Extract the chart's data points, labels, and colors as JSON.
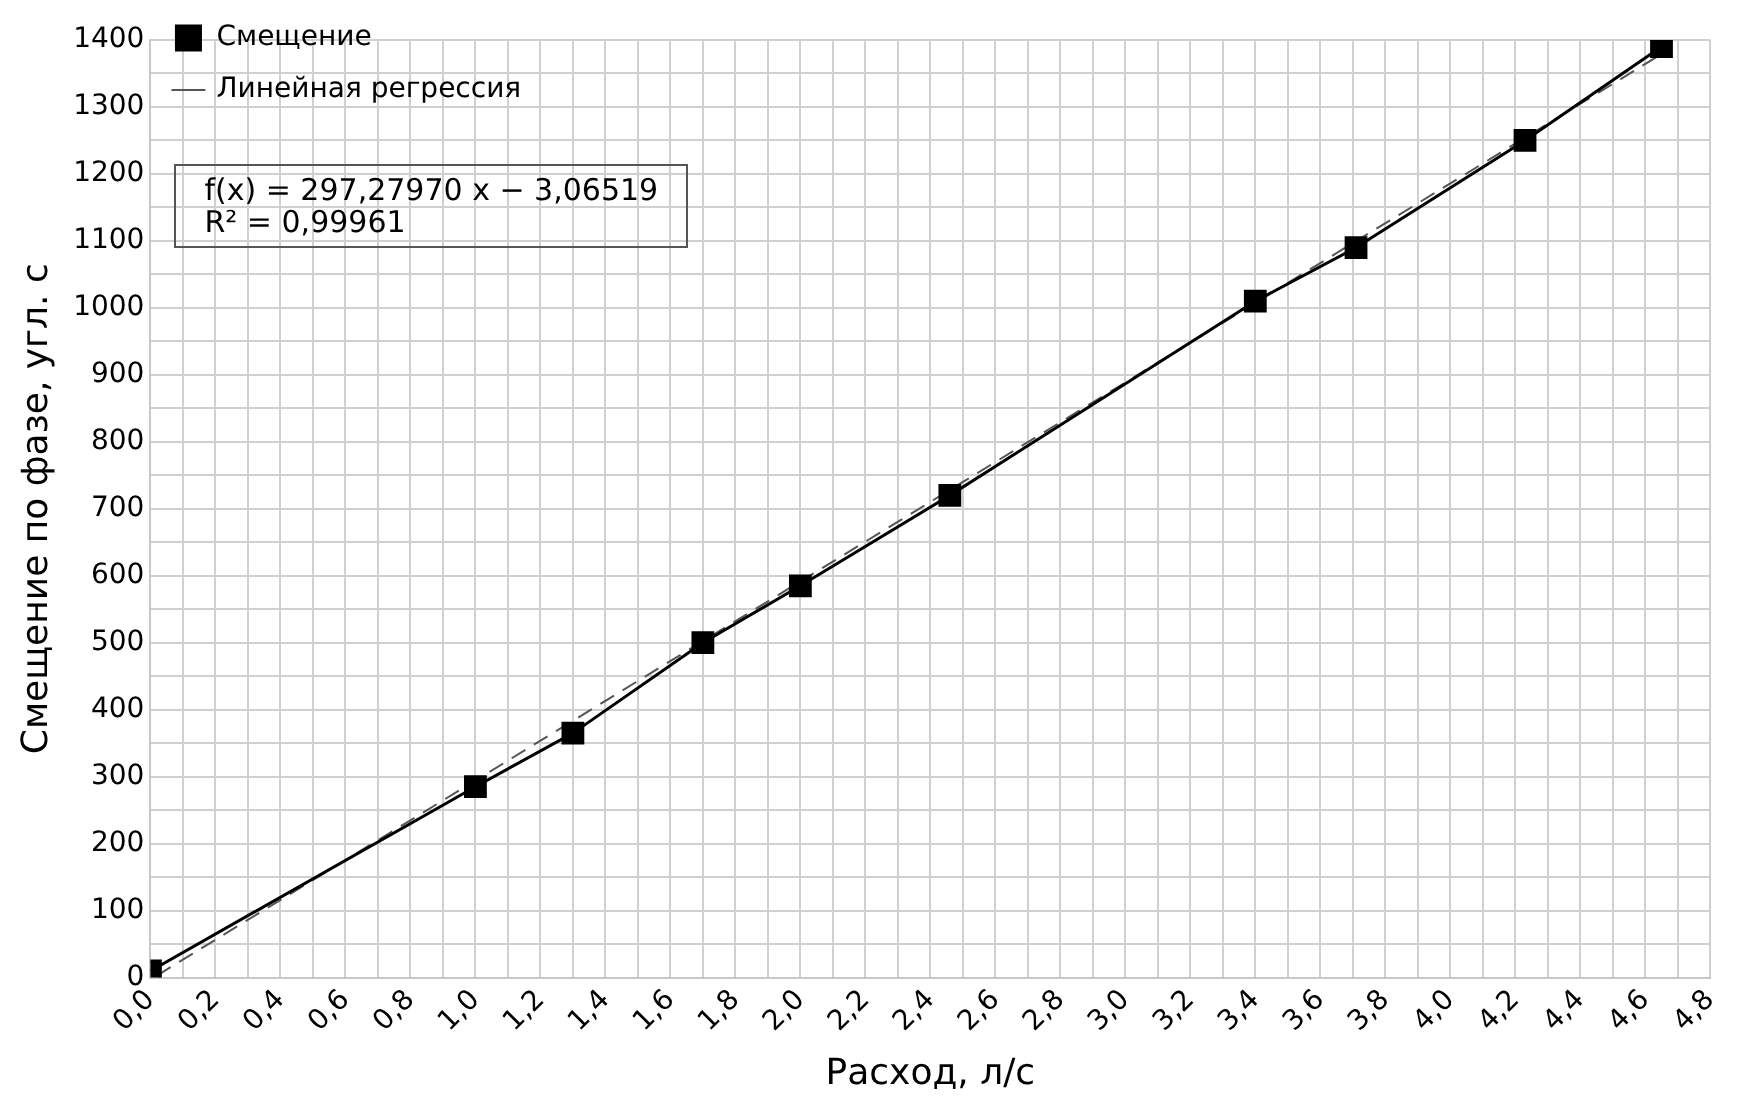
{
  "chart_data": {
    "type": "line",
    "xlabel": "Расход, л/с",
    "ylabel": "Смещение по фазе, угл. с",
    "x": [
      0,
      1.0,
      1.3,
      1.7,
      2.0,
      2.46,
      3.4,
      3.71,
      4.23,
      4.65
    ],
    "series": [
      {
        "name": "Смещение",
        "color": "#000000",
        "marker": "square",
        "line_style": "solid",
        "values": [
          10,
          285,
          365,
          500,
          585,
          720,
          1010,
          1090,
          1250,
          1390
        ]
      },
      {
        "name": "Линейная регрессия",
        "type": "line",
        "color": "#555555",
        "marker": "none",
        "line_style": "dashed",
        "x": [
          0.02,
          4.65
        ],
        "values": [
          3,
          1379
        ]
      }
    ],
    "xlim": [
      0,
      4.8
    ],
    "ylim": [
      0,
      1400
    ],
    "xticks": [
      {
        "value": 0,
        "label": "0,0"
      },
      {
        "value": 0.1,
        "label": null
      },
      {
        "value": 0.2,
        "label": "0,2"
      },
      {
        "value": 0.3,
        "label": null
      },
      {
        "value": 0.4,
        "label": "0,4"
      },
      {
        "value": 0.5,
        "label": null
      },
      {
        "value": 0.6,
        "label": "0,6"
      },
      {
        "value": 0.7,
        "label": null
      },
      {
        "value": 0.8,
        "label": "0,8"
      },
      {
        "value": 0.9,
        "label": null
      },
      {
        "value": 1.0,
        "label": "1,0"
      },
      {
        "value": 1.1,
        "label": null
      },
      {
        "value": 1.2,
        "label": "1,2"
      },
      {
        "value": 1.3,
        "label": null
      },
      {
        "value": 1.4,
        "label": "1,4"
      },
      {
        "value": 1.5,
        "label": null
      },
      {
        "value": 1.6,
        "label": "1,6"
      },
      {
        "value": 1.7,
        "label": null
      },
      {
        "value": 1.8,
        "label": "1,8"
      },
      {
        "value": 1.9,
        "label": null
      },
      {
        "value": 2.0,
        "label": "2,0"
      },
      {
        "value": 2.1,
        "label": null
      },
      {
        "value": 2.2,
        "label": "2,2"
      },
      {
        "value": 2.3,
        "label": null
      },
      {
        "value": 2.4,
        "label": "2,4"
      },
      {
        "value": 2.5,
        "label": null
      },
      {
        "value": 2.6,
        "label": "2,6"
      },
      {
        "value": 2.7,
        "label": null
      },
      {
        "value": 2.8,
        "label": "2,8"
      },
      {
        "value": 2.9,
        "label": null
      },
      {
        "value": 3.0,
        "label": "3,0"
      },
      {
        "value": 3.1,
        "label": null
      },
      {
        "value": 3.2,
        "label": "3,2"
      },
      {
        "value": 3.3,
        "label": null
      },
      {
        "value": 3.4,
        "label": "3,4"
      },
      {
        "value": 3.5,
        "label": null
      },
      {
        "value": 3.6,
        "label": "3,6"
      },
      {
        "value": 3.7,
        "label": null
      },
      {
        "value": 3.8,
        "label": "3,8"
      },
      {
        "value": 3.9,
        "label": null
      },
      {
        "value": 4.0,
        "label": "4,0"
      },
      {
        "value": 4.1,
        "label": null
      },
      {
        "value": 4.2,
        "label": "4,2"
      },
      {
        "value": 4.3,
        "label": null
      },
      {
        "value": 4.4,
        "label": "4,4"
      },
      {
        "value": 4.5,
        "label": null
      },
      {
        "value": 4.6,
        "label": "4,6"
      },
      {
        "value": 4.7,
        "label": null
      },
      {
        "value": 4.8,
        "label": "4,8"
      }
    ],
    "yticks": [
      0,
      {
        "value": 50,
        "label": null
      },
      100,
      {
        "value": 150,
        "label": null
      },
      200,
      {
        "value": 250,
        "label": null
      },
      300,
      {
        "value": 350,
        "label": null
      },
      400,
      {
        "value": 450,
        "label": null
      },
      500,
      {
        "value": 550,
        "label": null
      },
      600,
      {
        "value": 650,
        "label": null
      },
      700,
      {
        "value": 750,
        "label": null
      },
      800,
      {
        "value": 850,
        "label": null
      },
      900,
      {
        "value": 950,
        "label": null
      },
      1000,
      {
        "value": 1050,
        "label": null
      },
      1100,
      {
        "value": 1150,
        "label": null
      },
      1200,
      {
        "value": 1250,
        "label": null
      },
      1300,
      {
        "value": 1350,
        "label": null
      },
      1400
    ],
    "grid": true,
    "legend": "top left",
    "annotations": [
      "f(x) = 297,27970 x − 3,06519",
      "R² = 0,99961"
    ]
  }
}
